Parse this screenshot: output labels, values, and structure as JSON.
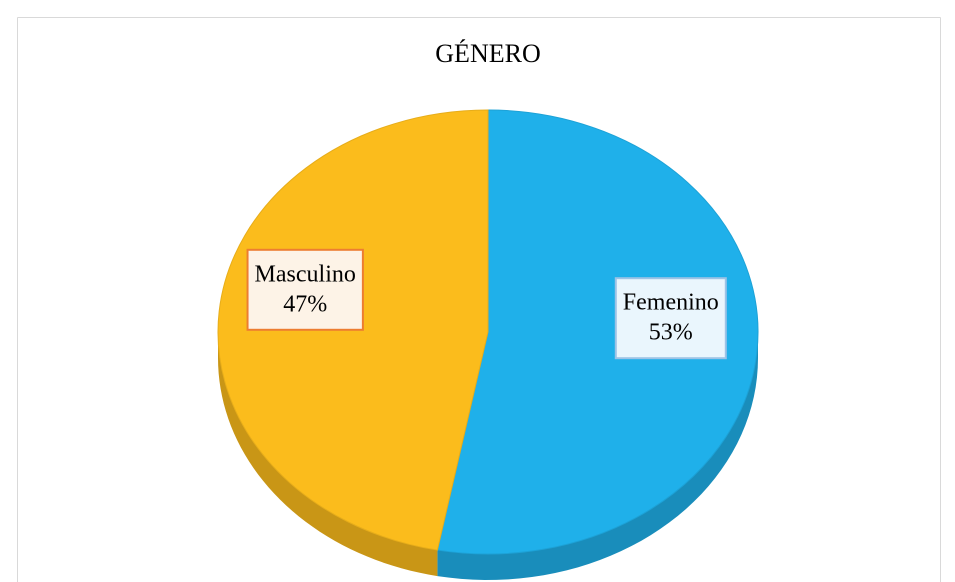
{
  "chart_data": {
    "type": "pie",
    "title": "GÉNERO",
    "categories": [
      "Femenino",
      "Masculino"
    ],
    "values": [
      53,
      47
    ],
    "value_labels": [
      "53%",
      "47%"
    ],
    "colors": [
      "#1fb0ea",
      "#fbbc1c"
    ]
  }
}
